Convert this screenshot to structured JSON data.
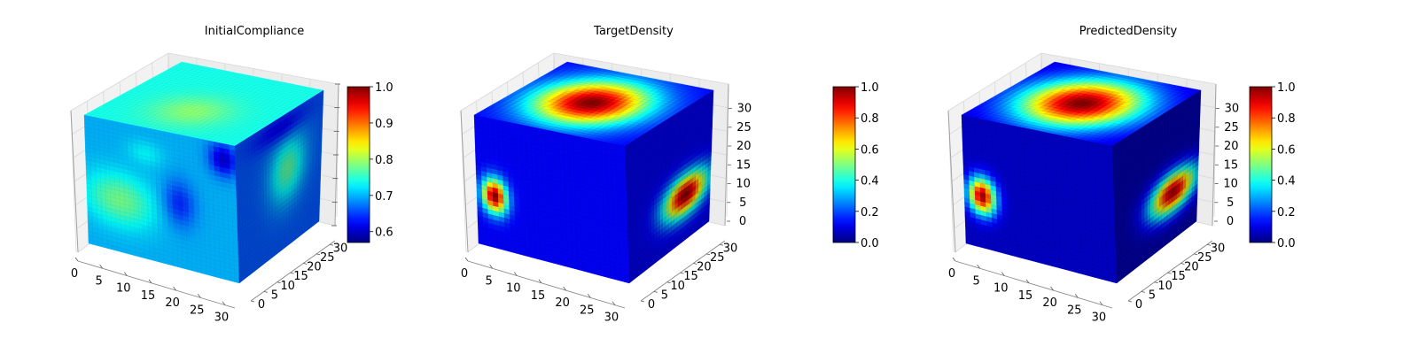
{
  "figure": {
    "colormap": "jet",
    "background": "#ffffff",
    "pane_color": "#f0f0f0",
    "grid": true
  },
  "chart_data": [
    {
      "type": "heatmap",
      "subtype": "3d-voxel-cube",
      "title": "InitialCompliance",
      "xlabel": "",
      "ylabel": "",
      "zlabel": "",
      "xlim": [
        0,
        32
      ],
      "ylim": [
        0,
        32
      ],
      "zlim": [
        0,
        32
      ],
      "x_ticks": [
        "0",
        "5",
        "10",
        "15",
        "20",
        "25",
        "30"
      ],
      "y_ticks": [
        "0",
        "5",
        "10",
        "15",
        "20",
        "25",
        "30"
      ],
      "z_ticks": [],
      "value_range": [
        0.57,
        1.0
      ],
      "colorbar_ticks": [
        "0.6",
        "0.7",
        "0.8",
        "0.9",
        "1.0"
      ],
      "colorbar_tick_values": [
        0.6,
        0.7,
        0.8,
        0.9,
        1.0
      ],
      "face_base_values": {
        "top": 0.74,
        "front": 0.7,
        "right": 0.66
      },
      "blobs": [
        {
          "face": "top",
          "u": 0.35,
          "v": 0.5,
          "ru": 0.3,
          "rv": 0.3,
          "value": 0.79
        },
        {
          "face": "front",
          "u": 0.22,
          "v": 0.6,
          "ru": 0.28,
          "rv": 0.25,
          "value": 0.78
        },
        {
          "face": "front",
          "u": 0.4,
          "v": 0.2,
          "ru": 0.15,
          "rv": 0.12,
          "value": 0.73
        },
        {
          "face": "front",
          "u": 0.62,
          "v": 0.52,
          "ru": 0.13,
          "rv": 0.22,
          "value": 0.64
        },
        {
          "face": "right",
          "u": 0.6,
          "v": 0.42,
          "ru": 0.26,
          "rv": 0.3,
          "value": 0.77
        },
        {
          "face": "front",
          "u": 0.92,
          "v": 0.12,
          "ru": 0.12,
          "rv": 0.15,
          "value": 0.6
        },
        {
          "face": "right",
          "u": 0.5,
          "v": 0.08,
          "ru": 0.4,
          "rv": 0.12,
          "value": 0.62
        }
      ]
    },
    {
      "type": "heatmap",
      "subtype": "3d-voxel-cube",
      "title": "TargetDensity",
      "xlabel": "",
      "ylabel": "",
      "zlabel": "",
      "xlim": [
        0,
        32
      ],
      "ylim": [
        0,
        32
      ],
      "zlim": [
        0,
        32
      ],
      "x_ticks": [
        "0",
        "5",
        "10",
        "15",
        "20",
        "25",
        "30"
      ],
      "y_ticks": [
        "0",
        "5",
        "10",
        "15",
        "20",
        "25",
        "30"
      ],
      "z_ticks": [
        "0",
        "5",
        "10",
        "15",
        "20",
        "25",
        "30"
      ],
      "value_range": [
        0.0,
        1.0
      ],
      "colorbar_ticks": [
        "0.0",
        "0.2",
        "0.4",
        "0.6",
        "0.8",
        "1.0"
      ],
      "colorbar_tick_values": [
        0.0,
        0.2,
        0.4,
        0.6,
        0.8,
        1.0
      ],
      "face_base_values": {
        "top": 0.12,
        "front": 0.12,
        "right": 0.1
      },
      "blobs": [
        {
          "face": "top",
          "u": 0.5,
          "v": 0.48,
          "ru": 0.45,
          "rv": 0.42,
          "value": 1.0
        },
        {
          "face": "front",
          "u": 0.12,
          "v": 0.6,
          "ru": 0.1,
          "rv": 0.16,
          "value": 1.0
        },
        {
          "face": "right",
          "u": 0.7,
          "v": 0.66,
          "ru": 0.32,
          "rv": 0.18,
          "value": 1.0
        }
      ]
    },
    {
      "type": "heatmap",
      "subtype": "3d-voxel-cube",
      "title": "PredictedDensity",
      "xlabel": "",
      "ylabel": "",
      "zlabel": "",
      "xlim": [
        0,
        32
      ],
      "ylim": [
        0,
        32
      ],
      "zlim": [
        0,
        32
      ],
      "x_ticks": [
        "0",
        "5",
        "10",
        "15",
        "20",
        "25",
        "30"
      ],
      "y_ticks": [
        "0",
        "5",
        "10",
        "15",
        "20",
        "25",
        "30"
      ],
      "z_ticks": [
        "0",
        "5",
        "10",
        "15",
        "20",
        "25",
        "30"
      ],
      "value_range": [
        0.0,
        1.0
      ],
      "colorbar_ticks": [
        "0.0",
        "0.2",
        "0.4",
        "0.6",
        "0.8",
        "1.0"
      ],
      "colorbar_tick_values": [
        0.0,
        0.2,
        0.4,
        0.6,
        0.8,
        1.0
      ],
      "face_base_values": {
        "top": 0.08,
        "front": 0.07,
        "right": 0.04
      },
      "blobs": [
        {
          "face": "top",
          "u": 0.5,
          "v": 0.5,
          "ru": 0.47,
          "rv": 0.44,
          "value": 1.0
        },
        {
          "face": "front",
          "u": 0.12,
          "v": 0.6,
          "ru": 0.11,
          "rv": 0.17,
          "value": 0.97
        },
        {
          "face": "right",
          "u": 0.7,
          "v": 0.64,
          "ru": 0.34,
          "rv": 0.18,
          "value": 0.97
        }
      ]
    }
  ]
}
